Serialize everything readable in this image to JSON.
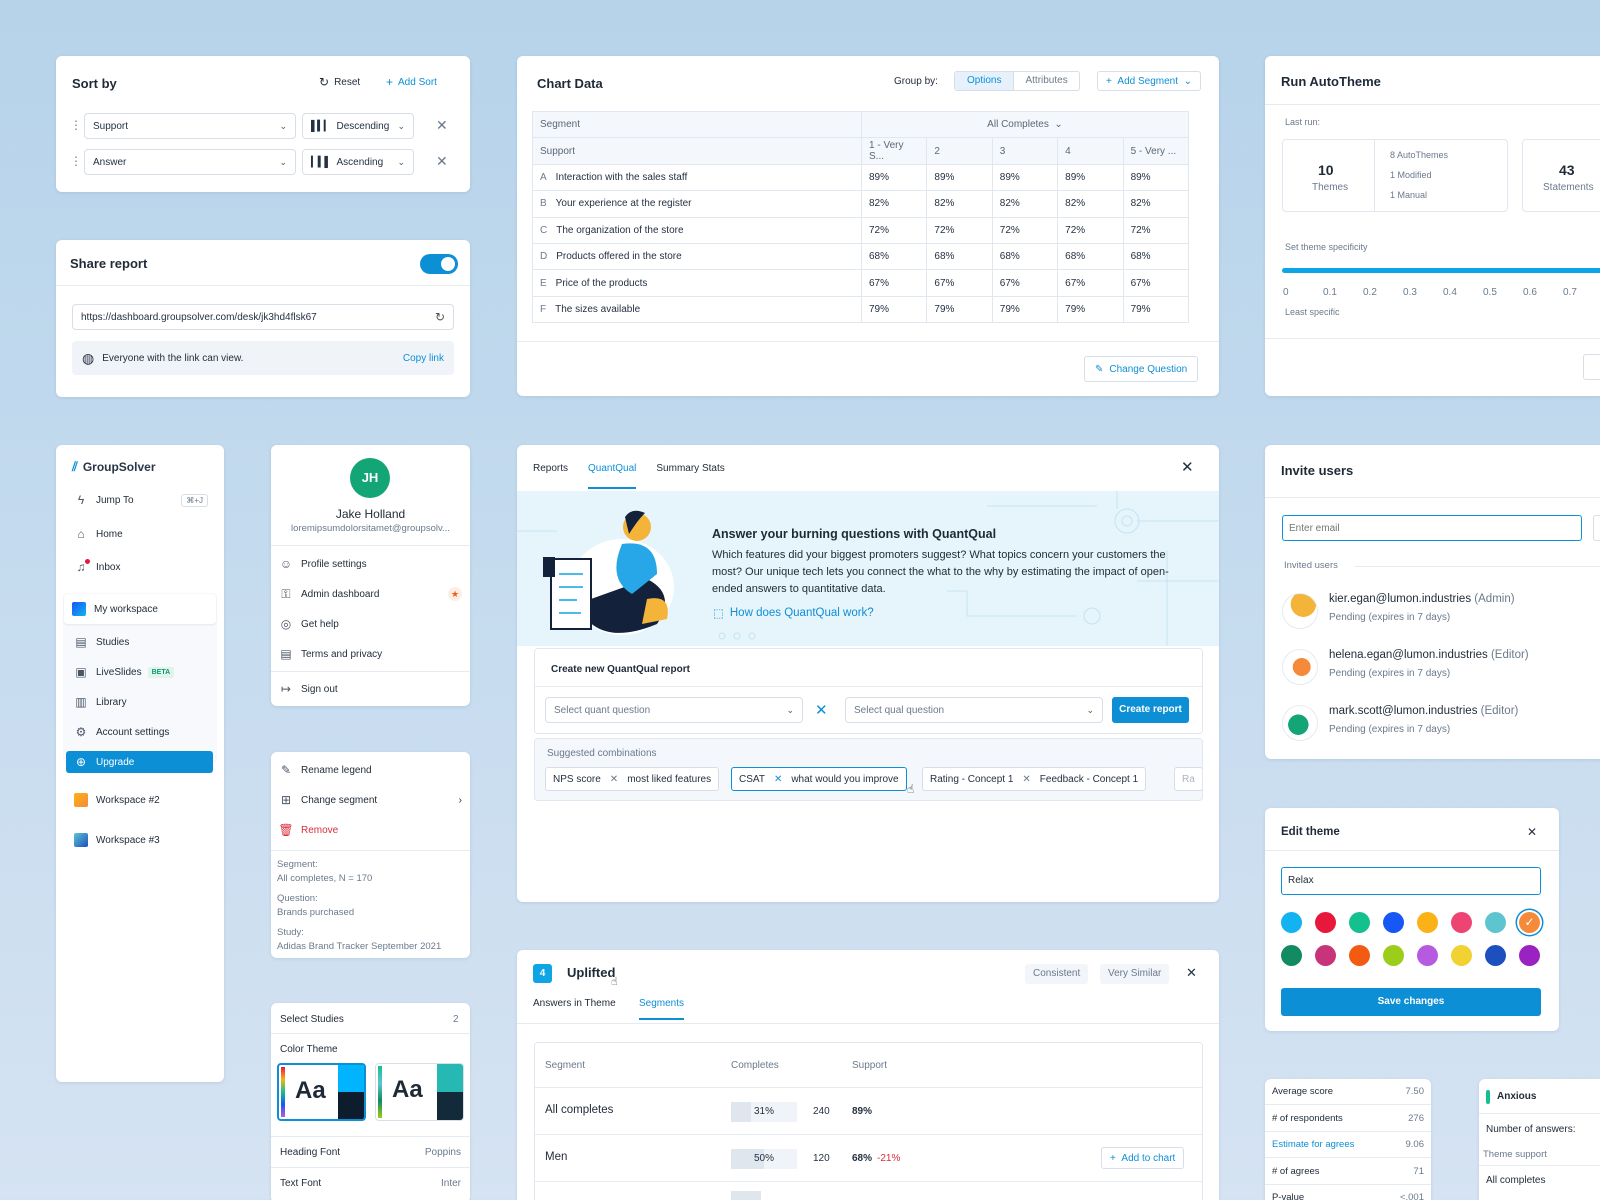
{
  "sort": {
    "title": "Sort by",
    "reset": "Reset",
    "add": "Add Sort",
    "rows": [
      {
        "field": "Support",
        "order": "Descending"
      },
      {
        "field": "Answer",
        "order": "Ascending"
      }
    ]
  },
  "share": {
    "title": "Share report",
    "url": "https://dashboard.groupsolver.com/desk/jk3hd4flsk67",
    "access": "Everyone with the link can view.",
    "copy": "Copy link"
  },
  "chart": {
    "title": "Chart Data",
    "group_by": "Group by:",
    "options": "Options",
    "attributes": "Attributes",
    "add_segment": "Add Segment",
    "segment_label": "Segment",
    "all_completes": "All Completes",
    "support_label": "Support",
    "columns": [
      "1 - Very S...",
      "2",
      "3",
      "4",
      "5 - Very ..."
    ],
    "rows": [
      {
        "letter": "A",
        "label": "Interaction with the sales staff",
        "values": [
          "89%",
          "89%",
          "89%",
          "89%",
          "89%"
        ]
      },
      {
        "letter": "B",
        "label": "Your experience at the register",
        "values": [
          "82%",
          "82%",
          "82%",
          "82%",
          "82%"
        ]
      },
      {
        "letter": "C",
        "label": "The organization of the store",
        "values": [
          "72%",
          "72%",
          "72%",
          "72%",
          "72%"
        ]
      },
      {
        "letter": "D",
        "label": "Products offered in the store",
        "values": [
          "68%",
          "68%",
          "68%",
          "68%",
          "68%"
        ]
      },
      {
        "letter": "E",
        "label": "Price of the products",
        "values": [
          "67%",
          "67%",
          "67%",
          "67%",
          "67%"
        ]
      },
      {
        "letter": "F",
        "label": "The sizes available",
        "values": [
          "79%",
          "79%",
          "79%",
          "79%",
          "79%"
        ]
      }
    ],
    "change": "Change Question"
  },
  "autotheme": {
    "title": "Run AutoTheme",
    "last_run": "Last run:",
    "themes_count": "10",
    "themes_label": "Themes",
    "auto": "8 AutoThemes",
    "modified": "1 Modified",
    "manual": "1 Manual",
    "statements_count": "43",
    "statements_label": "Statements",
    "specificity": "Set theme specificity",
    "ticks": [
      "0",
      "0.1",
      "0.2",
      "0.3",
      "0.4",
      "0.5",
      "0.6",
      "0.7",
      "0"
    ],
    "least": "Least specific",
    "slider_fraction": 1.0
  },
  "nav": {
    "brand": "GroupSolver",
    "jump": "Jump To",
    "shortcut": "⌘+J",
    "home": "Home",
    "inbox": "Inbox",
    "workspace": "My workspace",
    "studies": "Studies",
    "liveslides": "LiveSlides",
    "beta": "BETA",
    "library": "Library",
    "account": "Account settings",
    "upgrade": "Upgrade",
    "ws2": "Workspace #2",
    "ws3": "Workspace #3"
  },
  "profile": {
    "initials": "JH",
    "name": "Jake Holland",
    "email": "loremipsumdolorsitamet@groupsolv...",
    "settings": "Profile settings",
    "admin": "Admin dashboard",
    "help": "Get help",
    "terms": "Terms and privacy",
    "signout": "Sign out"
  },
  "legend": {
    "rename": "Rename legend",
    "change": "Change segment",
    "remove": "Remove",
    "seg_label": "Segment:",
    "seg_value": "All completes, N = 170",
    "q_label": "Question:",
    "q_value": "Brands purchased",
    "s_label": "Study:",
    "s_value": "Adidas Brand Tracker September 2021"
  },
  "studies": {
    "title": "Select Studies",
    "count": "2",
    "color_theme": "Color Theme",
    "aa": "Aa",
    "heading_font": "Heading Font",
    "heading_value": "Poppins",
    "text_font": "Text Font",
    "text_value": "Inter"
  },
  "quantqual": {
    "tabs": [
      "Reports",
      "QuantQual",
      "Summary Stats"
    ],
    "headline": "Answer your burning questions with QuantQual",
    "body": "Which features did your biggest promoters suggest? What topics concern your customers the most? Our unique tech lets you connect the what to the why by estimating the impact of open-ended answers to quantitative data.",
    "how": "How does QuantQual work?",
    "create_title": "Create new QuantQual report",
    "quant_ph": "Select quant question",
    "qual_ph": "Select qual question",
    "create_btn": "Create report",
    "suggested": "Suggested combinations",
    "combos": [
      {
        "a": "NPS score",
        "b": "most liked features"
      },
      {
        "a": "CSAT",
        "b": "what would you improve"
      },
      {
        "a": "Rating - Concept 1",
        "b": "Feedback - Concept 1"
      },
      {
        "a": "Ra",
        "b": ""
      }
    ]
  },
  "uplifted": {
    "num": "4",
    "title": "Uplifted",
    "consistent": "Consistent",
    "similar": "Very Similar",
    "tab1": "Answers in Theme",
    "tab2": "Segments",
    "col_segment": "Segment",
    "col_completes": "Completes",
    "col_support": "Support",
    "rows": [
      {
        "segment": "All completes",
        "pct": "31%",
        "pct_value": 0.31,
        "n": "240",
        "support": "89%",
        "delta": ""
      },
      {
        "segment": "Men",
        "pct": "50%",
        "pct_value": 0.5,
        "n": "120",
        "support": "68%",
        "delta": "-21%",
        "action": "Add to chart"
      }
    ]
  },
  "invite": {
    "title": "Invite users",
    "placeholder": "Enter email",
    "invited": "Invited users",
    "users": [
      {
        "email": "kier.egan@lumon.industries",
        "role": "(Admin)",
        "status": "Pending (expires in 7 days)"
      },
      {
        "email": "helena.egan@lumon.industries",
        "role": "(Editor)",
        "status": "Pending (expires in 7 days)"
      },
      {
        "email": "mark.scott@lumon.industries",
        "role": "(Editor)",
        "status": "Pending (expires in 7 days)"
      }
    ]
  },
  "edit_theme": {
    "title": "Edit theme",
    "value": "Relax",
    "save": "Save changes",
    "colors": [
      "#12b3f0",
      "#e8173c",
      "#14c08d",
      "#1657f5",
      "#fbb216",
      "#ee4473",
      "#5ec5d0",
      "#f58a3a",
      "#128a62",
      "#c8347a",
      "#f45b12",
      "#9ccd1b",
      "#b65bdf",
      "#f2d133",
      "#1e4fbf",
      "#9a22c0"
    ]
  },
  "stats": {
    "rows": [
      {
        "k": "Average score",
        "v": "7.50"
      },
      {
        "k": "# of respondents",
        "v": "276"
      },
      {
        "k": "Estimate for agrees",
        "v": "9.06"
      },
      {
        "k": "# of agrees",
        "v": "71"
      },
      {
        "k": "P-value",
        "v": "<.001"
      }
    ]
  },
  "anxious": {
    "title": "Anxious",
    "answers": "Number of answers:",
    "support": "Theme support",
    "all": "All completes"
  }
}
